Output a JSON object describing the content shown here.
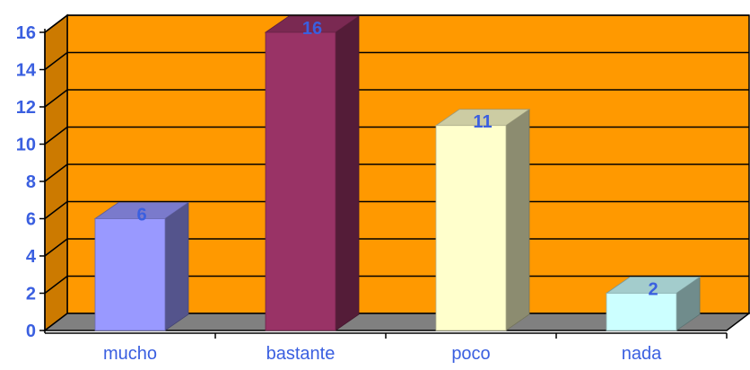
{
  "chart_data": {
    "type": "bar",
    "categories": [
      "mucho",
      "bastante",
      "poco",
      "nada"
    ],
    "values": [
      6,
      16,
      11,
      2
    ],
    "ylim": [
      0,
      16
    ],
    "yticks": [
      0,
      2,
      4,
      6,
      8,
      10,
      12,
      14,
      16
    ],
    "grid": true,
    "title": "",
    "xlabel": "",
    "ylabel": "",
    "data_labels": true,
    "three_d": true,
    "colors": {
      "plot_background": "#ff9900",
      "floor": "#808080",
      "gridlines": "#000000",
      "text": "#3a5fe0",
      "bars": [
        "#9999ff",
        "#993366",
        "#ffffcc",
        "#ccffff"
      ]
    }
  }
}
